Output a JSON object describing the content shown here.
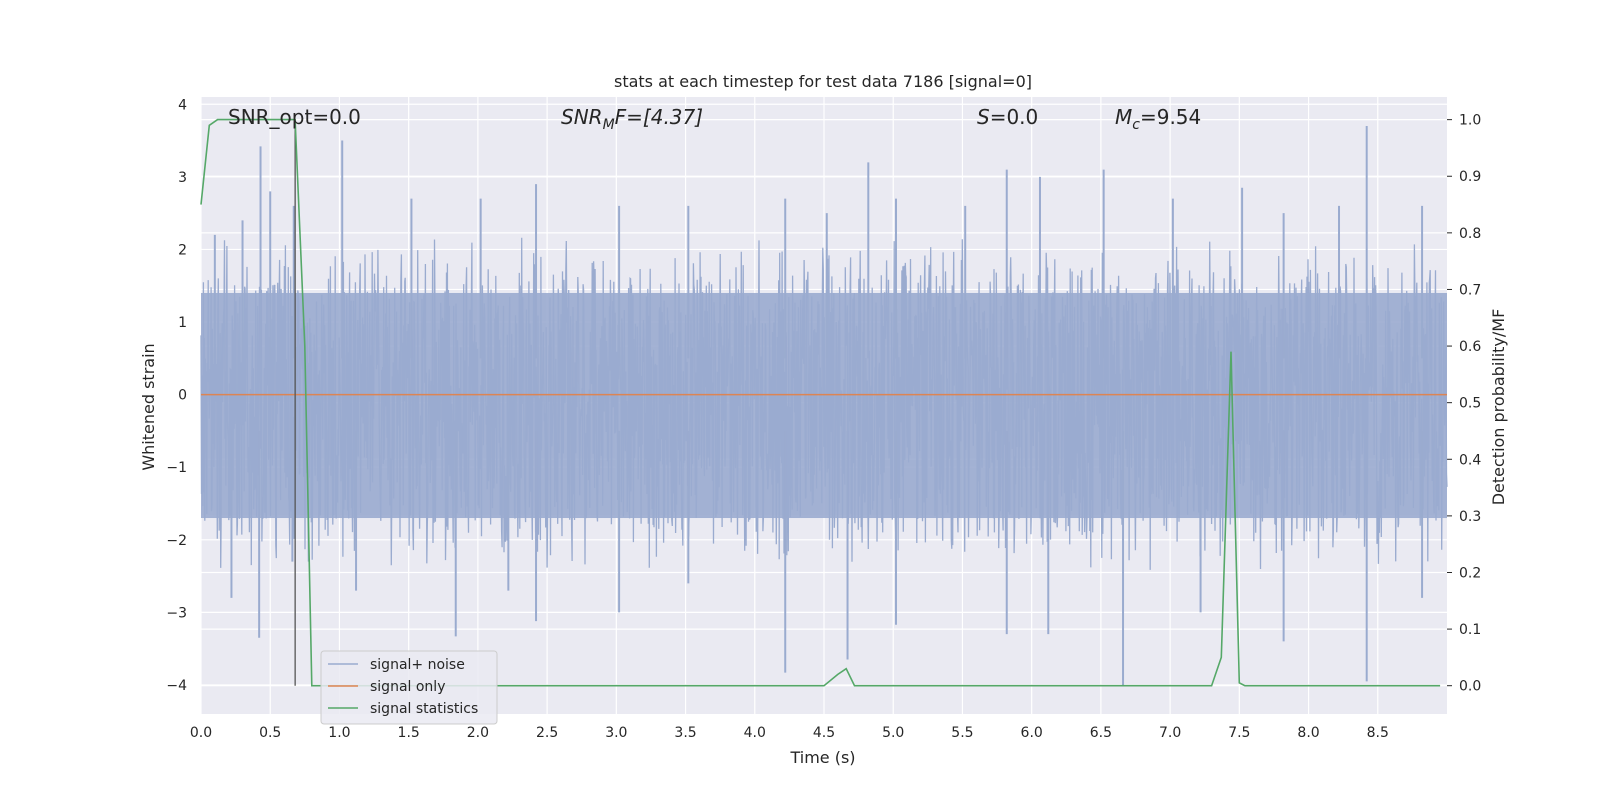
{
  "chart_data": {
    "type": "line",
    "title": "stats at each timestep for test data 7186 [signal=0]",
    "xlabel": "Time (s)",
    "ylabel": "Whitened strain",
    "ylabel_right": "Detection probability/MF",
    "xlim": [
      0,
      9
    ],
    "ylim": [
      -4.4,
      4.1
    ],
    "ylim_right": [
      -0.05,
      1.04
    ],
    "x_ticks": [
      "0.0",
      "0.5",
      "1.0",
      "1.5",
      "2.0",
      "2.5",
      "3.0",
      "3.5",
      "4.0",
      "4.5",
      "5.0",
      "5.5",
      "6.0",
      "6.5",
      "7.0",
      "7.5",
      "8.0",
      "8.5"
    ],
    "y_ticks": [
      "4",
      "3",
      "2",
      "1",
      "0",
      "−1",
      "−2",
      "−3",
      "−4"
    ],
    "y_ticks_right": [
      "1.0",
      "0.9",
      "0.8",
      "0.7",
      "0.6",
      "0.5",
      "0.4",
      "0.3",
      "0.2",
      "0.1",
      "0.0"
    ],
    "grid": true,
    "legend_position": "lower-left",
    "annotations": {
      "snr_opt": "SNR_opt=0.0",
      "snr_mf_base": "SNR",
      "snr_mf_sub": "M",
      "snr_mf_rest": "F=[4.37]",
      "s_sym": "S",
      "s_rest": "=0.0",
      "mc_base": "M",
      "mc_sub": "c",
      "mc_rest": "=9.54"
    },
    "vertical_marker_x": 0.68,
    "series": [
      {
        "name": "signal+ noise",
        "color": "#9aabcf",
        "axis": "left",
        "description_band": [
          -1.7,
          1.4
        ],
        "peaks_up": [
          [
            0.1,
            2.2
          ],
          [
            0.3,
            2.4
          ],
          [
            0.43,
            3.42
          ],
          [
            0.5,
            2.8
          ],
          [
            0.67,
            2.6
          ],
          [
            1.02,
            3.5
          ],
          [
            1.52,
            2.7
          ],
          [
            2.02,
            2.7
          ],
          [
            2.42,
            2.9
          ],
          [
            3.02,
            2.6
          ],
          [
            3.52,
            2.6
          ],
          [
            4.22,
            2.7
          ],
          [
            4.52,
            2.5
          ],
          [
            4.82,
            3.2
          ],
          [
            5.02,
            2.7
          ],
          [
            5.52,
            2.6
          ],
          [
            5.82,
            3.1
          ],
          [
            6.06,
            3.0
          ],
          [
            6.52,
            3.1
          ],
          [
            7.02,
            2.7
          ],
          [
            7.52,
            2.85
          ],
          [
            7.82,
            2.5
          ],
          [
            8.22,
            2.6
          ],
          [
            8.42,
            3.7
          ],
          [
            8.82,
            2.6
          ]
        ],
        "peaks_down": [
          [
            0.22,
            -2.8
          ],
          [
            0.42,
            -3.35
          ],
          [
            0.66,
            -2.3
          ],
          [
            1.12,
            -2.7
          ],
          [
            1.84,
            -3.33
          ],
          [
            2.22,
            -2.7
          ],
          [
            2.42,
            -3.12
          ],
          [
            3.02,
            -3.0
          ],
          [
            3.52,
            -2.6
          ],
          [
            4.22,
            -3.83
          ],
          [
            4.67,
            -3.65
          ],
          [
            5.02,
            -3.17
          ],
          [
            5.82,
            -3.3
          ],
          [
            6.12,
            -3.3
          ],
          [
            6.66,
            -4.0
          ],
          [
            7.22,
            -3.0
          ],
          [
            7.82,
            -3.4
          ],
          [
            8.42,
            -3.95
          ],
          [
            8.82,
            -2.8
          ]
        ]
      },
      {
        "name": "signal only",
        "color": "#dd8452",
        "axis": "left",
        "x": [
          0,
          9
        ],
        "y": [
          0,
          0
        ]
      },
      {
        "name": "signal statistics",
        "color": "#55a868",
        "axis": "right",
        "x": [
          0,
          0.06,
          0.12,
          0.3,
          0.5,
          0.68,
          0.75,
          0.8,
          1.0,
          2.0,
          3.0,
          4.0,
          4.5,
          4.6,
          4.66,
          4.72,
          5.0,
          6.0,
          7.0,
          7.3,
          7.37,
          7.44,
          7.5,
          7.54,
          8.0,
          8.95
        ],
        "y": [
          0.85,
          0.99,
          1.0,
          1.0,
          1.0,
          1.0,
          0.6,
          0.0,
          0.0,
          0.0,
          0.0,
          0.0,
          0.0,
          0.02,
          0.03,
          0.0,
          0.0,
          0.0,
          0.0,
          0.0,
          0.05,
          0.59,
          0.005,
          0.0,
          0.0,
          0.0
        ]
      }
    ]
  }
}
